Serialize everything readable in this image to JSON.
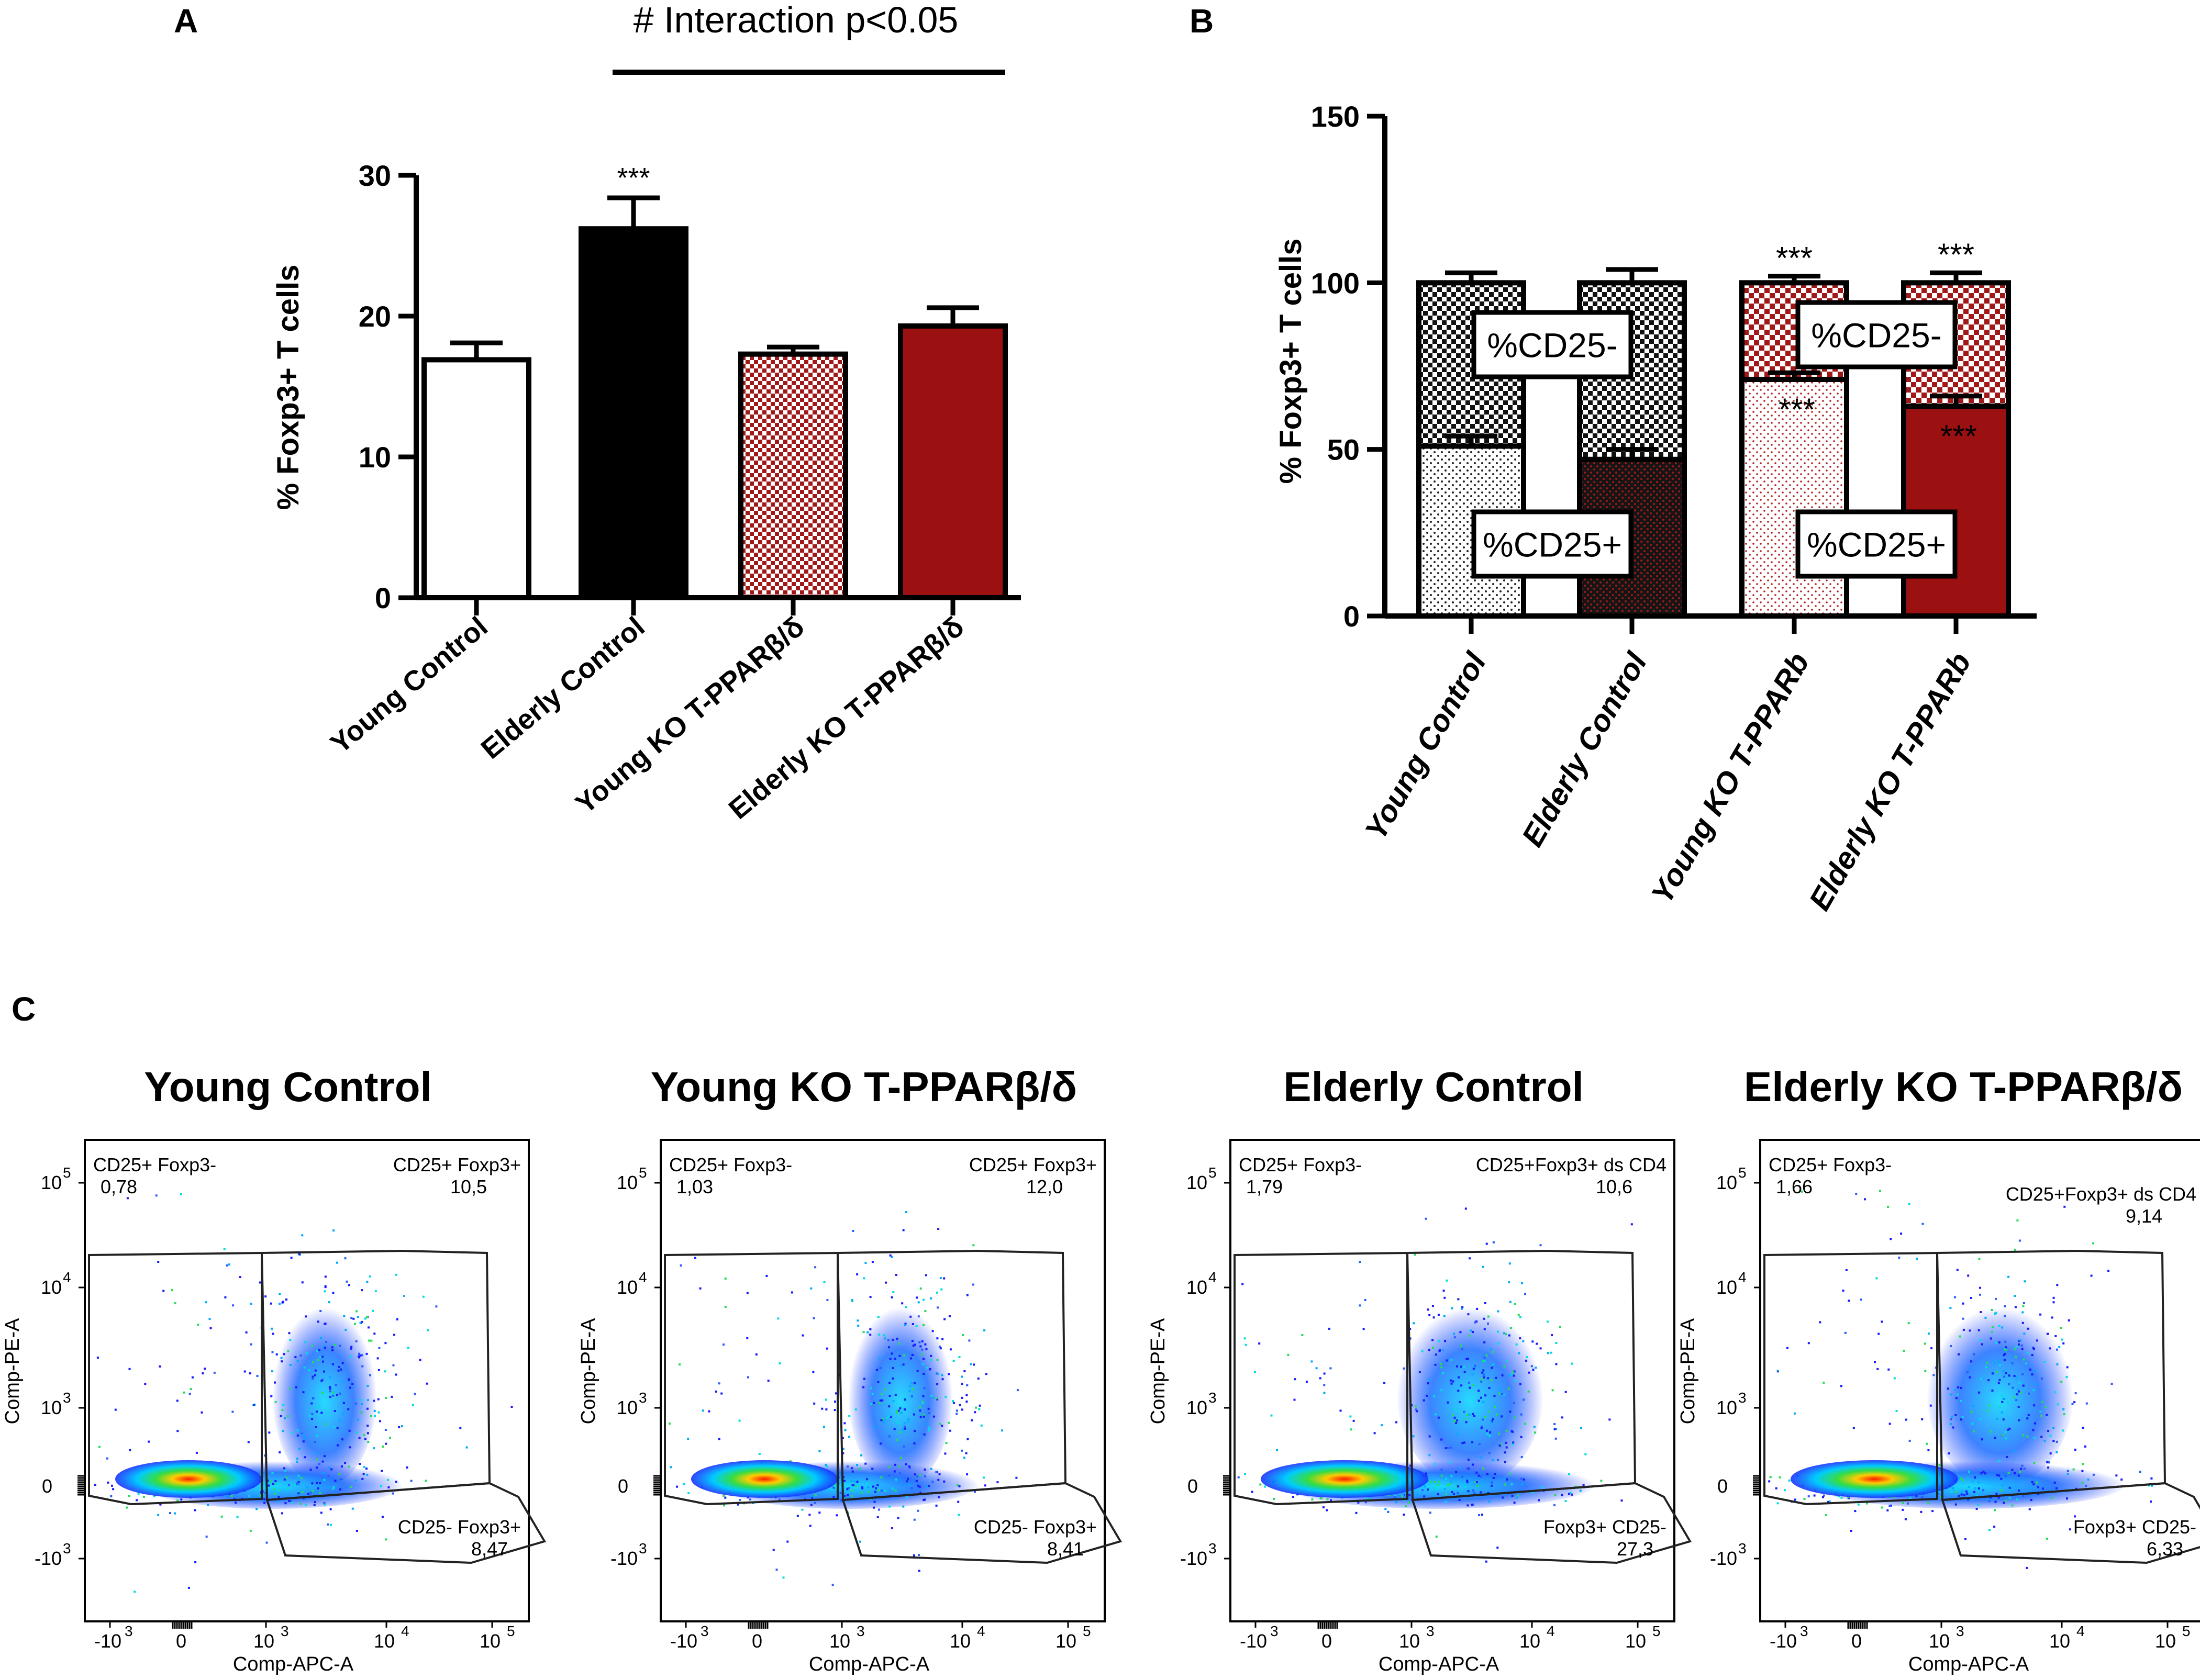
{
  "panel_a": {
    "letter": "A",
    "interaction_note": "# Interaction p<0.05",
    "chart_data": {
      "type": "bar",
      "title": "",
      "xlabel": "",
      "ylabel": "% Foxp3+ T cells",
      "ylim": [
        0,
        30
      ],
      "yticks": [
        "0",
        "10",
        "20",
        "30"
      ],
      "categories": [
        "Young Control",
        "Elderly Control",
        "Young KO T-PPARβ/δ",
        "Elderly KO T-PPARβ/δ"
      ],
      "values": [
        16.9,
        26.2,
        17.3,
        19.3
      ],
      "errors": [
        1.2,
        2.2,
        0.5,
        1.3
      ],
      "fills": [
        "white",
        "black",
        "check-red",
        "dark-red"
      ],
      "annotations": [
        "",
        "***",
        "",
        ""
      ]
    }
  },
  "panel_b": {
    "letter": "B",
    "chart_data": {
      "type": "bar",
      "stacked": true,
      "title": "",
      "xlabel": "",
      "ylabel": "% Foxp3+ T cells",
      "ylim": [
        0,
        150
      ],
      "yticks": [
        "0",
        "50",
        "100",
        "150"
      ],
      "categories": [
        "Young Control",
        "Elderly Control",
        "Young KO T-PPARb",
        "Elderly KO T-PPARb"
      ],
      "series": [
        {
          "name": "%CD25+",
          "values": [
            51,
            47,
            71,
            63
          ],
          "errors": [
            3,
            3,
            2,
            3
          ],
          "annotations": [
            "",
            "",
            "***",
            "***"
          ]
        },
        {
          "name": "%CD25-",
          "values": [
            49,
            53,
            29,
            37
          ],
          "errors": [
            3,
            4,
            2,
            3
          ],
          "annotations": [
            "",
            "",
            "***",
            "***"
          ]
        }
      ],
      "legend_cd25_minus": "%CD25-",
      "legend_cd25_plus": "%CD25+"
    }
  },
  "panel_c": {
    "letter": "C",
    "x_axis_label": "Comp-APC-A",
    "y_axis_label": "Comp-PE-A",
    "tick_labels": {
      "neg3": "-10",
      "zero": "0",
      "p3": "10",
      "p4": "10",
      "p5": "10",
      "exp_neg": "3",
      "exp3": "3",
      "exp4": "4",
      "exp5": "5"
    },
    "plots": [
      {
        "title": "Young Control",
        "gate_tl_name": "CD25+ Foxp3-",
        "gate_tl_value": "0,78",
        "gate_tr_name": "CD25+ Foxp3+",
        "gate_tr_value": "10,5",
        "gate_br_name": "CD25- Foxp3+",
        "gate_br_value": "8,47"
      },
      {
        "title": "Young KO T-PPARβ/δ",
        "gate_tl_name": "CD25+ Foxp3-",
        "gate_tl_value": "1,03",
        "gate_tr_name": "CD25+ Foxp3+",
        "gate_tr_value": "12,0",
        "gate_br_name": "CD25- Foxp3+",
        "gate_br_value": "8,41"
      },
      {
        "title": "Elderly Control",
        "gate_tl_name": "CD25+ Foxp3-",
        "gate_tl_value": "1,79",
        "gate_tr_name": "CD25+Foxp3+ ds CD4",
        "gate_tr_value": "10,6",
        "gate_br_name": "Foxp3+ CD25-",
        "gate_br_value": "27,3"
      },
      {
        "title": "Elderly KO T-PPARβ/δ",
        "gate_tl_name": "CD25+ Foxp3-",
        "gate_tl_value": "1,66",
        "gate_tr_name": "CD25+Foxp3+ ds CD4",
        "gate_tr_value": "9,14",
        "gate_br_name": "Foxp3+ CD25-",
        "gate_br_value": "6,33"
      }
    ]
  }
}
